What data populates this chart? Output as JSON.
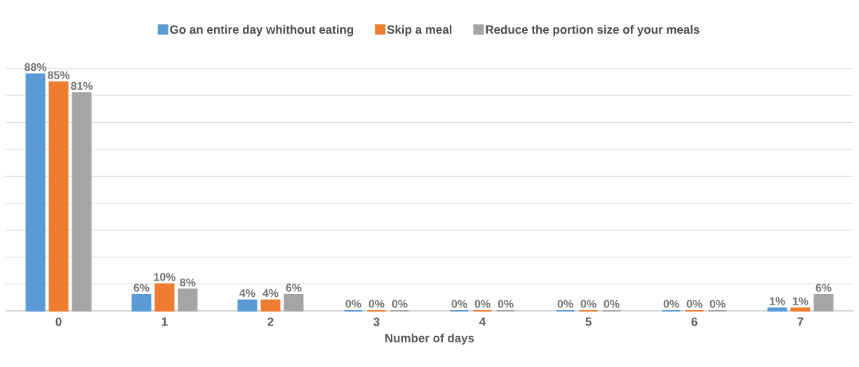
{
  "chart_data": {
    "type": "bar",
    "xlabel": "Number of days",
    "categories": [
      "0",
      "1",
      "2",
      "3",
      "4",
      "5",
      "6",
      "7"
    ],
    "series": [
      {
        "name": "Go an entire day whithout eating",
        "color": "#5b9bd5",
        "values": [
          88,
          6,
          4,
          0,
          0,
          0,
          0,
          1
        ],
        "value_labels": [
          "88%",
          "6%",
          "4%",
          "0%",
          "0%",
          "0%",
          "0%",
          "1%"
        ]
      },
      {
        "name": "Skip a meal",
        "color": "#ed7d31",
        "values": [
          85,
          10,
          4,
          0,
          0,
          0,
          0,
          1
        ],
        "value_labels": [
          "85%",
          "10%",
          "4%",
          "0%",
          "0%",
          "0%",
          "0%",
          "1%"
        ]
      },
      {
        "name": "Reduce the portion size of your meals",
        "color": "#a5a5a5",
        "values": [
          81,
          8,
          6,
          0,
          0,
          0,
          0,
          6
        ],
        "value_labels": [
          "81%",
          "8%",
          "6%",
          "0%",
          "0%",
          "0%",
          "0%",
          "6%"
        ]
      }
    ],
    "grid": "y",
    "legend": "top",
    "tick_labels": "x"
  }
}
